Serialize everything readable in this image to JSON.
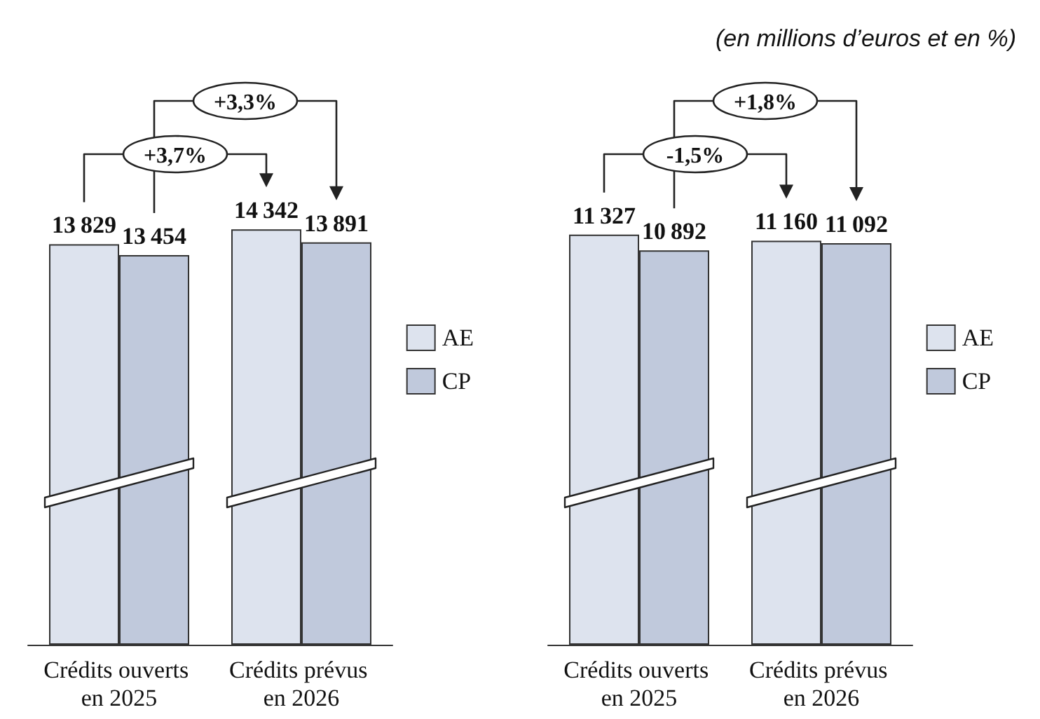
{
  "chart_data": [
    {
      "type": "bar",
      "categories": [
        "Crédits ouverts en 2025",
        "Crédits prévus en 2026"
      ],
      "series": [
        {
          "name": "AE",
          "color": "#dde3ee",
          "values": [
            13829,
            14342
          ]
        },
        {
          "name": "CP",
          "color": "#c0c9dc",
          "values": [
            13454,
            13891
          ]
        }
      ],
      "data_labels": true,
      "legend": "right",
      "annotations": [
        "+3,3%",
        "+3,7%"
      ]
    },
    {
      "type": "bar",
      "categories": [
        "Crédits ouverts en 2025",
        "Crédits prévus en 2026"
      ],
      "series": [
        {
          "name": "AE",
          "color": "#dde3ee",
          "values": [
            11327,
            11160
          ]
        },
        {
          "name": "CP",
          "color": "#c0c9dc",
          "values": [
            10892,
            11092
          ]
        }
      ],
      "data_labels": true,
      "legend": "right",
      "annotations": [
        "+1,8%",
        "-1,5%",
        "(en millions d’euros et en %)"
      ]
    }
  ]
}
